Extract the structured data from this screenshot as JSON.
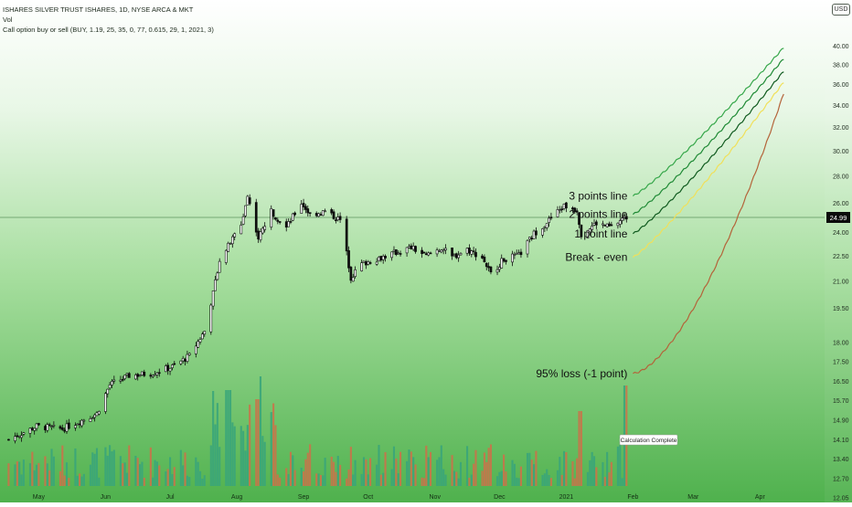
{
  "header": {
    "title": "ISHARES SILVER TRUST ISHARES, 1D, NYSE ARCA & MKT",
    "volume_label": "Vol",
    "indicator": "Call option buy or sell (BUY, 1.19, 25, 35, 0, 77, 0.615, 29, 1, 2021, 3)",
    "currency": "USD"
  },
  "tooltip": "Calculation Complete",
  "chart_data": {
    "type": "candlestick",
    "yaxis": {
      "scale": "log",
      "range": [
        11.9,
        43
      ],
      "ticks": [
        "40.00",
        "38.00",
        "36.00",
        "34.00",
        "32.00",
        "30.00",
        "28.00",
        "26.00",
        "24.00",
        "22.50",
        "21.00",
        "19.50",
        "18.00",
        "17.50",
        "16.50",
        "15.70",
        "14.90",
        "14.10",
        "13.40",
        "12.70",
        "12.05"
      ],
      "last_price": "24.99"
    },
    "xaxis": {
      "ticks": [
        "May",
        "Jun",
        "Jul",
        "Aug",
        "Sep",
        "Oct",
        "Nov",
        "Dec",
        "2021",
        "Feb",
        "Mar",
        "Apr"
      ]
    },
    "price_anchors": [
      [
        "Apr 17",
        13.6
      ],
      [
        "Apr 30",
        14.1
      ],
      [
        "May 12",
        14.0
      ],
      [
        "May 28",
        14.6
      ],
      [
        "Jun 3",
        15.8
      ],
      [
        "Jun 12",
        16.2
      ],
      [
        "Jun 22",
        16.3
      ],
      [
        "Jul 2",
        16.6
      ],
      [
        "Jul 10",
        17.1
      ],
      [
        "Jul 17",
        18.3
      ],
      [
        "Jul 21",
        20.3
      ],
      [
        "Jul 24",
        22.3
      ],
      [
        "Jul 28",
        23.1
      ],
      [
        "Aug 3",
        24.5
      ],
      [
        "Aug 6",
        26.5
      ],
      [
        "Aug 11",
        23.6
      ],
      [
        "Aug 17",
        25.4
      ],
      [
        "Aug 24",
        24.3
      ],
      [
        "Aug 31",
        26.0
      ],
      [
        "Sep 4",
        25.2
      ],
      [
        "Sep 11",
        25.4
      ],
      [
        "Sep 18",
        24.8
      ],
      [
        "Sep 23",
        21.2
      ],
      [
        "Sep 28",
        22.0
      ],
      [
        "Oct 7",
        22.4
      ],
      [
        "Oct 14",
        22.7
      ],
      [
        "Oct 21",
        23.0
      ],
      [
        "Oct 28",
        22.5
      ],
      [
        "Nov 4",
        23.0
      ],
      [
        "Nov 9",
        22.4
      ],
      [
        "Nov 16",
        22.9
      ],
      [
        "Nov 23",
        22.4
      ],
      [
        "Nov 27",
        21.4
      ],
      [
        "Dec 3",
        22.3
      ],
      [
        "Dec 10",
        22.5
      ],
      [
        "Dec 17",
        23.9
      ],
      [
        "Dec 24",
        24.8
      ],
      [
        "Dec 31",
        25.8
      ],
      [
        "Jan 6",
        25.5
      ],
      [
        "Jan 8",
        23.9
      ],
      [
        "Jan 15",
        24.6
      ],
      [
        "Jan 22",
        24.3
      ],
      [
        "Jan 27",
        24.9
      ],
      [
        "Jan 29",
        24.99
      ]
    ],
    "volume": {
      "peaks": [
        "Aug 11",
        "Aug 10",
        "Jul 28",
        "Jan 29",
        "Jan 8"
      ]
    },
    "payoff_lines": [
      {
        "name": "3 points line",
        "color": "#36a74a",
        "start": 26.5,
        "end": 39.8
      },
      {
        "name": "2 points line",
        "color": "#1f8a35",
        "start": 25.2,
        "end": 38.6
      },
      {
        "name": "1 point line",
        "color": "#0f5a1e",
        "start": 23.9,
        "end": 37.3
      },
      {
        "name": "Break - even",
        "color": "#f0e05a",
        "start": 22.4,
        "end": 36.2
      },
      {
        "name": "95% loss (-1 point)",
        "color": "#b4643a",
        "start": 16.3,
        "end": 35.1
      }
    ],
    "payoff_x_range": [
      "Feb 1",
      "Apr 12"
    ],
    "grid": false,
    "legend_placement": "top-left"
  }
}
